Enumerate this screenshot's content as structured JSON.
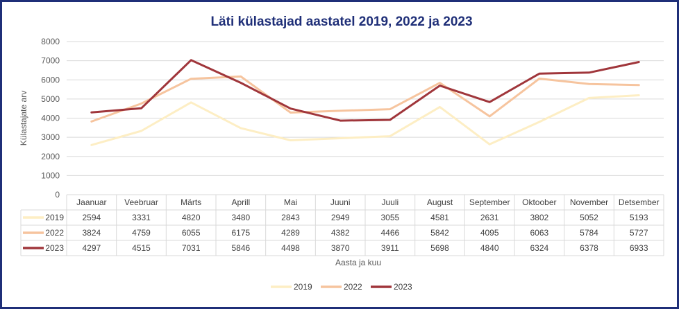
{
  "chart_data": {
    "type": "line",
    "title": "Läti külastajad aastatel 2019, 2022 ja 2023",
    "xlabel": "Aasta ja kuu",
    "ylabel": "Külastajate arv",
    "ylim": [
      0,
      8000
    ],
    "yticks": [
      "0",
      "1000",
      "2000",
      "3000",
      "4000",
      "5000",
      "6000",
      "7000",
      "8000"
    ],
    "grid": true,
    "legend_position": "bottom",
    "categories": [
      "Jaanuar",
      "Veebruar",
      "Märts",
      "Aprill",
      "Mai",
      "Juuni",
      "Juuli",
      "August",
      "September",
      "Oktoober",
      "November",
      "Detsember"
    ],
    "series": [
      {
        "name": "2019",
        "color": "#fdeec4",
        "values": [
          2594,
          3331,
          4820,
          3480,
          2843,
          2949,
          3055,
          4581,
          2631,
          3802,
          5052,
          5193
        ]
      },
      {
        "name": "2022",
        "color": "#f6c49e",
        "values": [
          3824,
          4759,
          6055,
          6175,
          4289,
          4382,
          4466,
          5842,
          4095,
          6063,
          5784,
          5727
        ]
      },
      {
        "name": "2023",
        "color": "#a0363b",
        "values": [
          4297,
          4515,
          7031,
          5846,
          4498,
          3870,
          3911,
          5698,
          4840,
          6324,
          6378,
          6933
        ]
      }
    ]
  }
}
